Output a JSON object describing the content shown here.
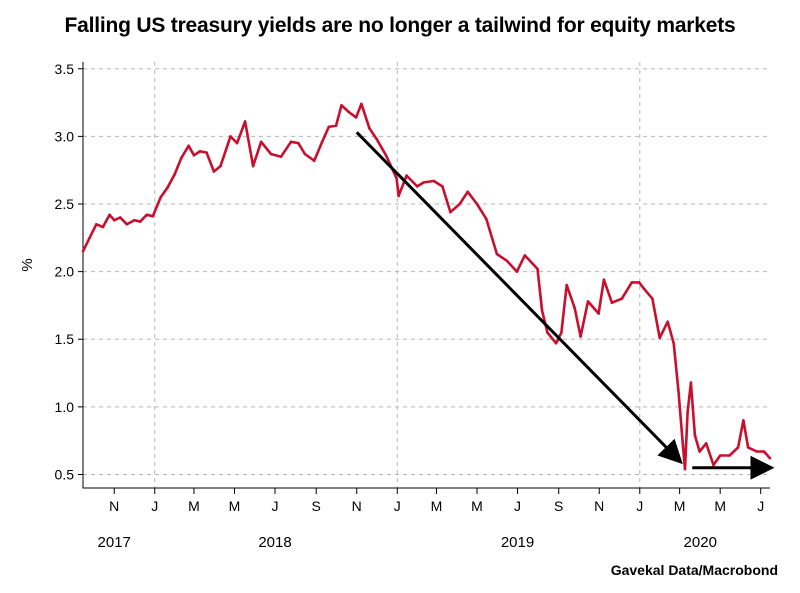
{
  "title": "Falling US treasury yields are no longer a tailwind for equity markets",
  "source": "Gavekal Data/Macrobond",
  "chart_data": {
    "type": "line",
    "title": "Falling US treasury yields are no longer a tailwind for equity markets",
    "xlabel": "",
    "ylabel": "%",
    "ylim": [
      0.4,
      3.55
    ],
    "yticks": [
      "0.5",
      "1.0",
      "1.5",
      "2.0",
      "2.5",
      "3.0",
      "3.5"
    ],
    "xlim": [
      "2017-09-15",
      "2020-07-15"
    ],
    "x_tick_labels": [
      {
        "date": "2017-11-01",
        "label": "N"
      },
      {
        "date": "2018-01-01",
        "label": "J"
      },
      {
        "date": "2018-03-01",
        "label": "M"
      },
      {
        "date": "2018-05-01",
        "label": "M"
      },
      {
        "date": "2018-07-01",
        "label": "J"
      },
      {
        "date": "2018-09-01",
        "label": "S"
      },
      {
        "date": "2018-11-01",
        "label": "N"
      },
      {
        "date": "2019-01-01",
        "label": "J"
      },
      {
        "date": "2019-03-01",
        "label": "M"
      },
      {
        "date": "2019-05-01",
        "label": "M"
      },
      {
        "date": "2019-07-01",
        "label": "J"
      },
      {
        "date": "2019-09-01",
        "label": "S"
      },
      {
        "date": "2019-11-01",
        "label": "N"
      },
      {
        "date": "2020-01-01",
        "label": "J"
      },
      {
        "date": "2020-03-01",
        "label": "M"
      },
      {
        "date": "2020-05-01",
        "label": "M"
      },
      {
        "date": "2020-07-01",
        "label": "J"
      }
    ],
    "year_labels": [
      {
        "date": "2017-11-01",
        "label": "2017"
      },
      {
        "date": "2018-07-01",
        "label": "2018"
      },
      {
        "date": "2019-07-01",
        "label": "2019"
      },
      {
        "date": "2020-04-01",
        "label": "2020"
      }
    ],
    "vertical_gridlines": [
      "2018-01-01",
      "2019-01-01",
      "2020-01-01"
    ],
    "grid": true,
    "series": [
      {
        "color": "#c8102e",
        "points": [
          [
            "2017-09-15",
            2.15
          ],
          [
            "2017-09-25",
            2.25
          ],
          [
            "2017-10-05",
            2.35
          ],
          [
            "2017-10-15",
            2.33
          ],
          [
            "2017-10-25",
            2.42
          ],
          [
            "2017-11-01",
            2.38
          ],
          [
            "2017-11-10",
            2.4
          ],
          [
            "2017-11-20",
            2.35
          ],
          [
            "2017-12-01",
            2.38
          ],
          [
            "2017-12-10",
            2.37
          ],
          [
            "2017-12-20",
            2.42
          ],
          [
            "2017-12-29",
            2.41
          ],
          [
            "2018-01-10",
            2.55
          ],
          [
            "2018-01-20",
            2.62
          ],
          [
            "2018-01-31",
            2.72
          ],
          [
            "2018-02-10",
            2.84
          ],
          [
            "2018-02-21",
            2.93
          ],
          [
            "2018-03-01",
            2.86
          ],
          [
            "2018-03-10",
            2.89
          ],
          [
            "2018-03-20",
            2.88
          ],
          [
            "2018-03-31",
            2.74
          ],
          [
            "2018-04-10",
            2.78
          ],
          [
            "2018-04-25",
            3.0
          ],
          [
            "2018-05-05",
            2.95
          ],
          [
            "2018-05-17",
            3.11
          ],
          [
            "2018-05-29",
            2.78
          ],
          [
            "2018-06-10",
            2.96
          ],
          [
            "2018-06-25",
            2.87
          ],
          [
            "2018-07-10",
            2.85
          ],
          [
            "2018-07-25",
            2.96
          ],
          [
            "2018-08-05",
            2.95
          ],
          [
            "2018-08-15",
            2.87
          ],
          [
            "2018-08-29",
            2.82
          ],
          [
            "2018-09-10",
            2.96
          ],
          [
            "2018-09-20",
            3.07
          ],
          [
            "2018-10-01",
            3.08
          ],
          [
            "2018-10-09",
            3.23
          ],
          [
            "2018-10-20",
            3.18
          ],
          [
            "2018-10-31",
            3.14
          ],
          [
            "2018-11-08",
            3.24
          ],
          [
            "2018-11-20",
            3.06
          ],
          [
            "2018-12-01",
            2.98
          ],
          [
            "2018-12-15",
            2.86
          ],
          [
            "2018-12-31",
            2.69
          ],
          [
            "2019-01-03",
            2.56
          ],
          [
            "2019-01-15",
            2.71
          ],
          [
            "2019-01-31",
            2.63
          ],
          [
            "2019-02-10",
            2.66
          ],
          [
            "2019-02-25",
            2.67
          ],
          [
            "2019-03-10",
            2.63
          ],
          [
            "2019-03-22",
            2.44
          ],
          [
            "2019-04-05",
            2.5
          ],
          [
            "2019-04-17",
            2.59
          ],
          [
            "2019-05-01",
            2.5
          ],
          [
            "2019-05-15",
            2.39
          ],
          [
            "2019-05-31",
            2.13
          ],
          [
            "2019-06-15",
            2.08
          ],
          [
            "2019-06-30",
            2.0
          ],
          [
            "2019-07-12",
            2.12
          ],
          [
            "2019-07-31",
            2.02
          ],
          [
            "2019-08-07",
            1.71
          ],
          [
            "2019-08-15",
            1.55
          ],
          [
            "2019-08-28",
            1.47
          ],
          [
            "2019-09-05",
            1.55
          ],
          [
            "2019-09-13",
            1.9
          ],
          [
            "2019-09-25",
            1.73
          ],
          [
            "2019-10-04",
            1.52
          ],
          [
            "2019-10-15",
            1.78
          ],
          [
            "2019-10-31",
            1.69
          ],
          [
            "2019-11-08",
            1.94
          ],
          [
            "2019-11-20",
            1.77
          ],
          [
            "2019-12-05",
            1.8
          ],
          [
            "2019-12-20",
            1.92
          ],
          [
            "2019-12-31",
            1.92
          ],
          [
            "2020-01-08",
            1.87
          ],
          [
            "2020-01-20",
            1.8
          ],
          [
            "2020-01-31",
            1.51
          ],
          [
            "2020-02-12",
            1.63
          ],
          [
            "2020-02-21",
            1.47
          ],
          [
            "2020-02-28",
            1.13
          ],
          [
            "2020-03-06",
            0.71
          ],
          [
            "2020-03-09",
            0.54
          ],
          [
            "2020-03-13",
            0.96
          ],
          [
            "2020-03-18",
            1.18
          ],
          [
            "2020-03-24",
            0.79
          ],
          [
            "2020-03-31",
            0.67
          ],
          [
            "2020-04-10",
            0.73
          ],
          [
            "2020-04-21",
            0.57
          ],
          [
            "2020-05-01",
            0.64
          ],
          [
            "2020-05-15",
            0.64
          ],
          [
            "2020-05-28",
            0.7
          ],
          [
            "2020-06-05",
            0.9
          ],
          [
            "2020-06-12",
            0.7
          ],
          [
            "2020-06-25",
            0.67
          ],
          [
            "2020-07-06",
            0.67
          ],
          [
            "2020-07-15",
            0.62
          ]
        ]
      }
    ],
    "annotations": [
      {
        "type": "arrow",
        "color": "#000000",
        "from": [
          "2018-11-01",
          3.03
        ],
        "to": [
          "2020-03-01",
          0.6
        ]
      },
      {
        "type": "arrow",
        "color": "#000000",
        "from": [
          "2020-03-20",
          0.55
        ],
        "to": [
          "2020-07-15",
          0.55
        ]
      }
    ]
  }
}
